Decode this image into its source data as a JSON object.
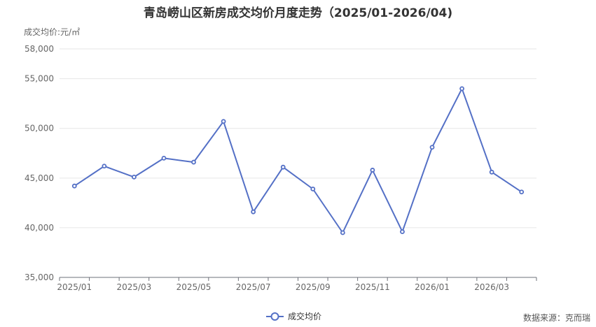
{
  "chart_data": {
    "type": "line",
    "title": "青岛崂山区新房成交均价月度走势（2025/01-2026/04)",
    "ylabel": "成交均价:元/㎡",
    "ylim": [
      35000,
      58000
    ],
    "yticks": [
      35000,
      40000,
      45000,
      50000,
      55000,
      58000
    ],
    "ytick_labels": [
      "35,000",
      "40,000",
      "45,000",
      "50,000",
      "55,000",
      "58,000"
    ],
    "x": [
      "2025/01",
      "2025/02",
      "2025/03",
      "2025/04",
      "2025/05",
      "2025/06",
      "2025/07",
      "2025/08",
      "2025/09",
      "2025/10",
      "2025/11",
      "2025/12",
      "2026/01",
      "2026/02",
      "2026/03",
      "2026/04"
    ],
    "x_tick_labels": [
      "2025/01",
      "2025/03",
      "2025/05",
      "2025/07",
      "2025/09",
      "2025/11",
      "2026/01",
      "2026/03"
    ],
    "series": [
      {
        "name": "成交均价",
        "color": "#5470c6",
        "values": [
          44200,
          46200,
          45100,
          47000,
          46600,
          50700,
          41600,
          46100,
          43900,
          39500,
          45800,
          39600,
          48100,
          54000,
          45600,
          43600
        ]
      }
    ],
    "legend": "bottom-center",
    "grid": true
  },
  "source_text": "数据来源：克而瑞"
}
